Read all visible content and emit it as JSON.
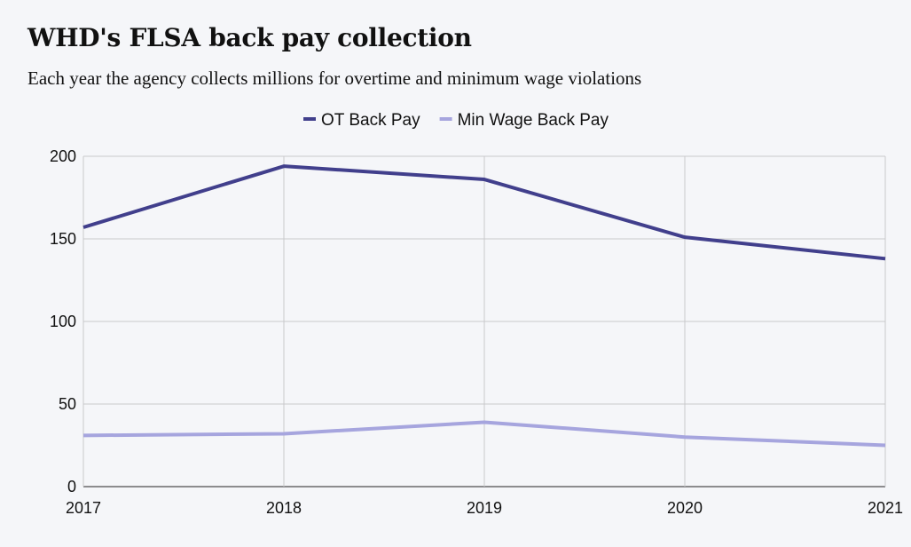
{
  "header": {
    "title": "WHD's FLSA back pay collection",
    "subtitle": "Each year the agency collects millions for overtime and minimum wage violations"
  },
  "chart_data": {
    "type": "line",
    "title": "WHD's FLSA back pay collection",
    "subtitle": "Each year the agency collects millions for overtime and minimum wage violations",
    "xlabel": "",
    "ylabel": "",
    "x": [
      "2017",
      "2018",
      "2019",
      "2020",
      "2021"
    ],
    "ylim": [
      0,
      200
    ],
    "yticks": [
      0,
      50,
      100,
      150,
      200
    ],
    "grid": true,
    "legend_position": "top-center",
    "series": [
      {
        "name": "OT Back Pay",
        "color": "#413f8c",
        "values": [
          157,
          194,
          186,
          151,
          138
        ]
      },
      {
        "name": "Min Wage Back Pay",
        "color": "#a6a5de",
        "values": [
          31,
          32,
          39,
          30,
          25
        ]
      }
    ]
  }
}
